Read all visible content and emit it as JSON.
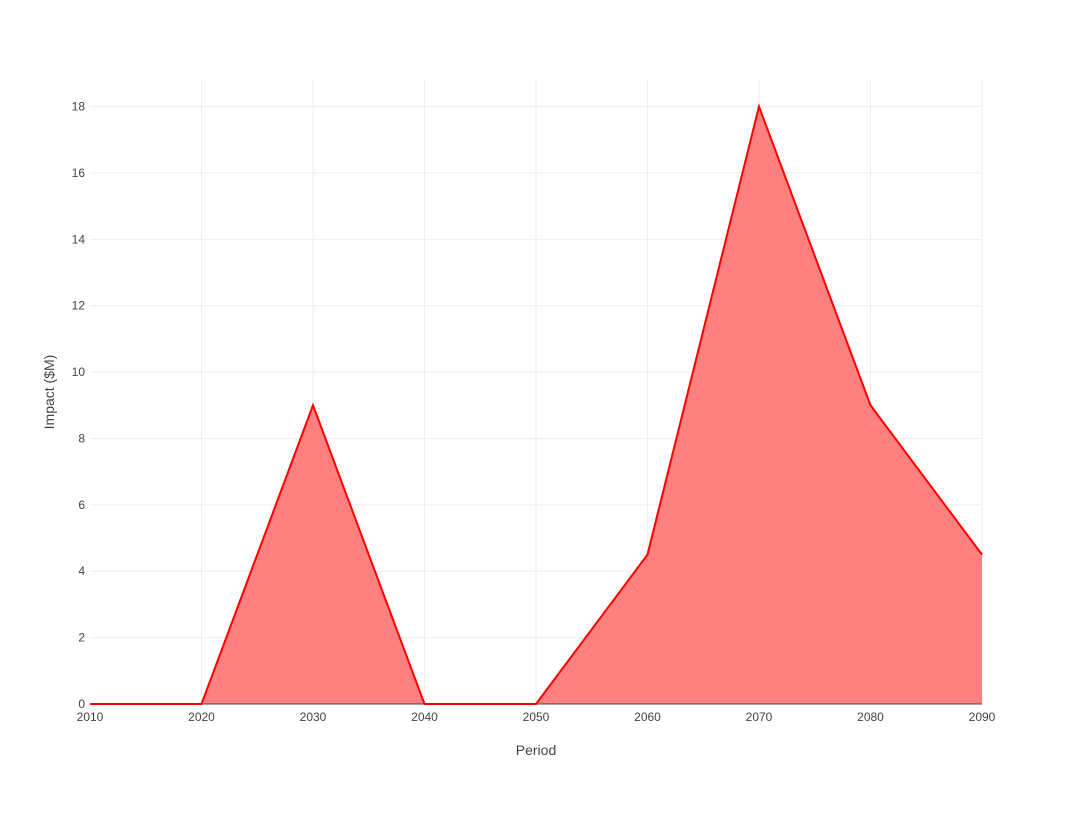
{
  "chart_data": {
    "type": "area",
    "xlabel": "Period",
    "ylabel": "Impact ($M)",
    "x": [
      2010,
      2020,
      2030,
      2040,
      2050,
      2060,
      2070,
      2080,
      2090
    ],
    "series": [
      {
        "values": [
          0,
          0,
          9,
          0,
          0,
          4.5,
          18,
          9,
          4.5
        ]
      }
    ],
    "xlim": [
      2010,
      2090
    ],
    "ylim": [
      0,
      18.8
    ],
    "x_ticks": [
      "2010",
      "2020",
      "2030",
      "2040",
      "2050",
      "2060",
      "2070",
      "2080",
      "2090"
    ],
    "y_ticks": [
      "0",
      "2",
      "4",
      "6",
      "8",
      "10",
      "12",
      "14",
      "16",
      "18"
    ],
    "grid": true,
    "colors": {
      "line": "#ff0000",
      "fill": "#ff8080"
    }
  }
}
